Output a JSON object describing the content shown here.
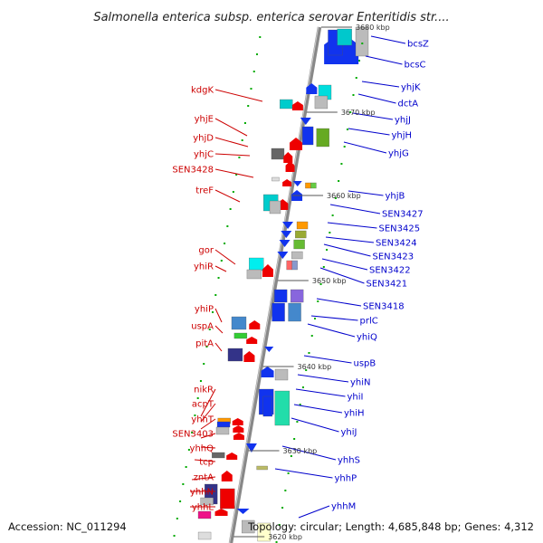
{
  "title": "Salmonella enterica subsp. enterica serovar Enteritidis str....",
  "footer": {
    "accession": "Accession: NC_011294",
    "topology": "Topology: circular; Length: 4,685,848 bp; Genes: 4,312"
  },
  "colors": {
    "forward_label": "#cc0000",
    "reverse_label": "#0000cc",
    "backbone": "#888888",
    "forward_gene": "#ee0000",
    "reverse_gene": "#1111dd",
    "dot": "#00aa00"
  },
  "kbp_marks": [
    "3680 kbp",
    "3670 kbp",
    "3660 kbp",
    "3650 kbp",
    "3640 kbp",
    "3630 kbp",
    "3620 kbp"
  ],
  "forward_genes": [
    "kdgK",
    "yhjE",
    "yhjD",
    "yhjC",
    "SEN3428",
    "treF",
    "gor",
    "yhiR",
    "yhiP",
    "uspA",
    "pitA",
    "nikR",
    "acpT",
    "yhhT",
    "SEN3403",
    "yhhQ",
    "tcp",
    "zntA",
    "yhhN",
    "yhhL"
  ],
  "reverse_genes": [
    "bcsZ",
    "bcsC",
    "yhjK",
    "dctA",
    "yhjJ",
    "yhjH",
    "yhjG",
    "yhjB",
    "SEN3427",
    "SEN3425",
    "SEN3424",
    "SEN3423",
    "SEN3422",
    "SEN3421",
    "SEN3418",
    "prlC",
    "yhiQ",
    "uspB",
    "yhiN",
    "yhiI",
    "yhiH",
    "yhiJ",
    "yhhS",
    "yhhP",
    "yhhM"
  ]
}
